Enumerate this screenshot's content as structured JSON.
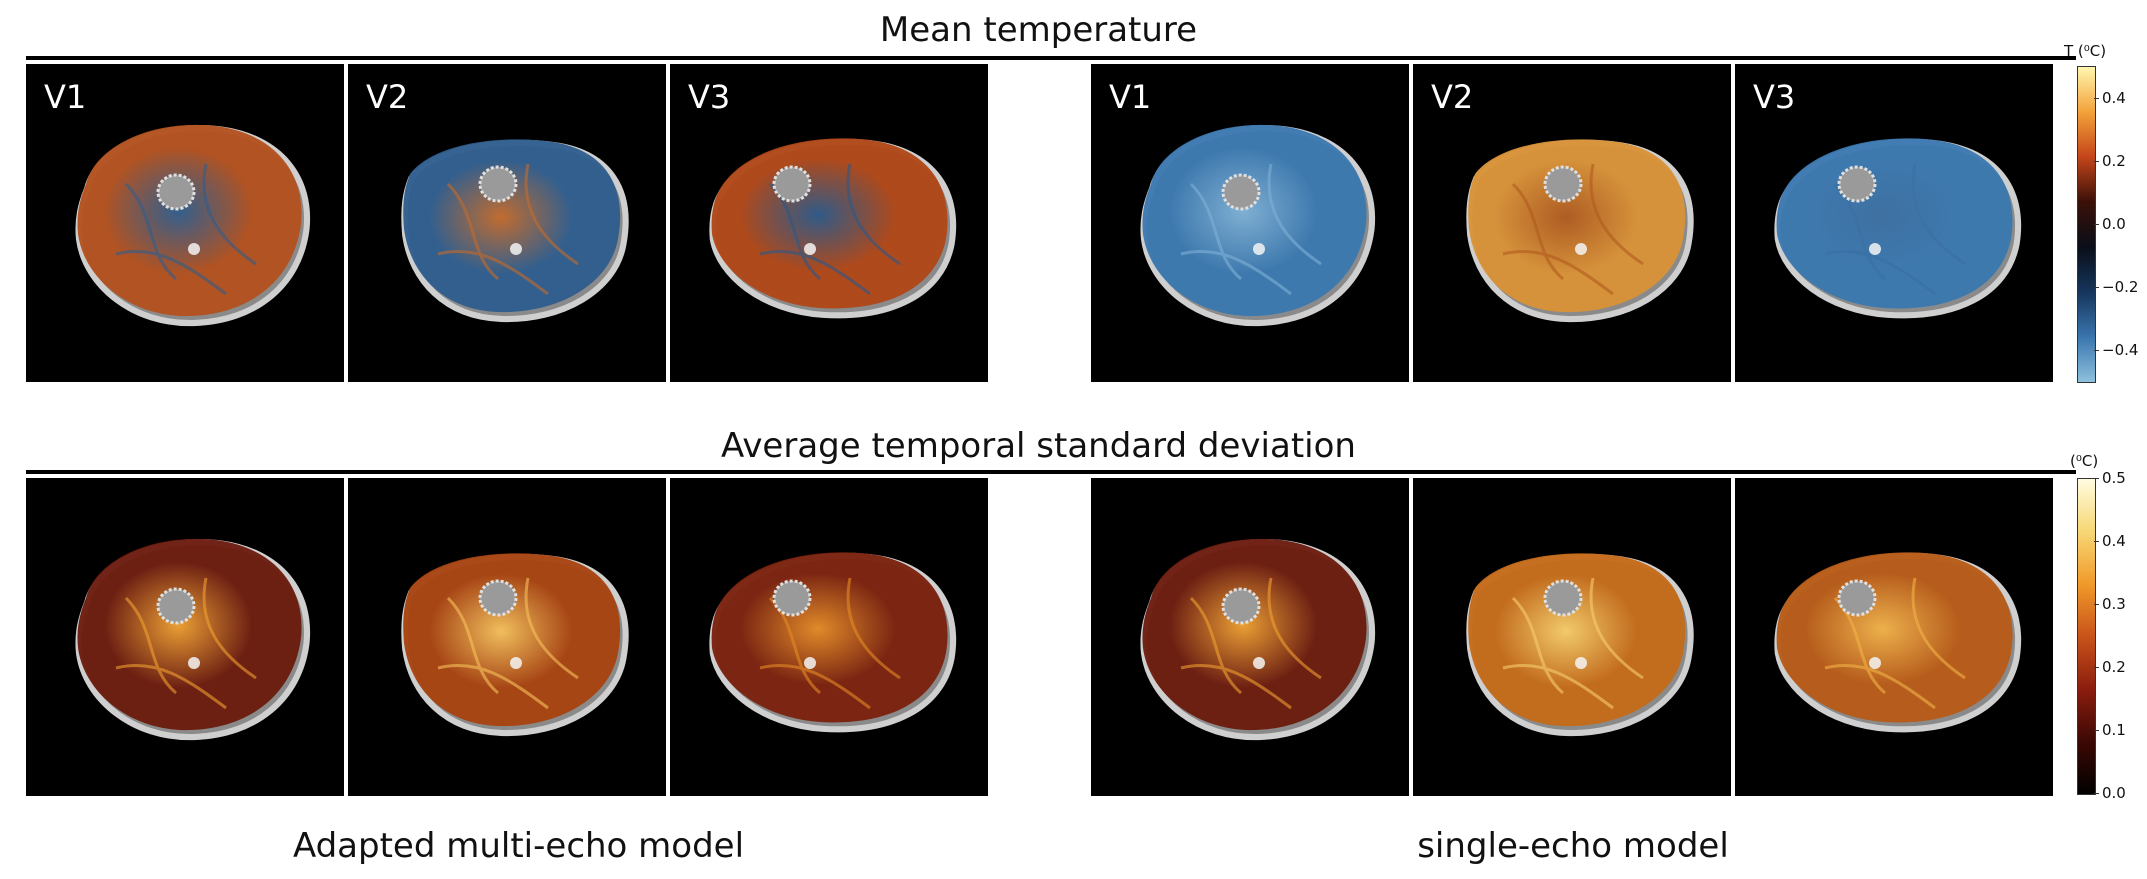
{
  "figure": {
    "top_title": "Mean temperature",
    "middle_title": "Average temporal standard deviation",
    "left_group_label": "Adapted multi-echo model",
    "right_group_label": "single-echo model",
    "visits": [
      "V1",
      "V2",
      "V3"
    ]
  },
  "colorbars": {
    "temperature": {
      "title": "T (⁰C)",
      "ticks": [
        "0.4",
        "0.2",
        "0.0",
        "−0.2",
        "−0.4"
      ],
      "range": [
        -0.5,
        0.5
      ],
      "colors": [
        "#fff6b0",
        "#f3a23a",
        "#c4451a",
        "#3a1008",
        "#0a0e18",
        "#15355c",
        "#3a75ad",
        "#8ec1de"
      ]
    },
    "std": {
      "title": "(⁰C)",
      "ticks": [
        "0.5",
        "0.4",
        "0.3",
        "0.2",
        "0.1",
        "0.0"
      ],
      "range": [
        0.0,
        0.5
      ],
      "colors": [
        "#fffce0",
        "#f7d775",
        "#f09a2a",
        "#c9531a",
        "#8b1d0e",
        "#3d0804",
        "#000000"
      ]
    }
  }
}
